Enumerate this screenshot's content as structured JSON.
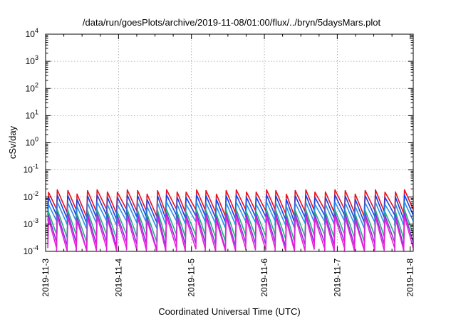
{
  "chart_data": {
    "type": "line",
    "title": "/data/run/goesPlots/archive/2019-11-08/01:00/flux/../bryn/5daysMars.plot",
    "xlabel": "Coordinated Universal Time (UTC)",
    "ylabel": "cSv/day",
    "yscale": "log",
    "ylim": [
      0.0001,
      10000
    ],
    "xlim": [
      "2019-11-03",
      "2019-11-08 01:00"
    ],
    "grid": true,
    "legend": "none",
    "y_ticks": [
      {
        "value": 0.0001,
        "base": "10",
        "exp": "-4"
      },
      {
        "value": 0.001,
        "base": "10",
        "exp": "-3"
      },
      {
        "value": 0.01,
        "base": "10",
        "exp": "-2"
      },
      {
        "value": 0.1,
        "base": "10",
        "exp": "-1"
      },
      {
        "value": 1,
        "base": "10",
        "exp": "0"
      },
      {
        "value": 10,
        "base": "10",
        "exp": "1"
      },
      {
        "value": 100,
        "base": "10",
        "exp": "2"
      },
      {
        "value": 1000,
        "base": "10",
        "exp": "3"
      },
      {
        "value": 10000,
        "base": "10",
        "exp": "4"
      }
    ],
    "x_ticks": [
      "2019-11-3",
      "2019-11-4",
      "2019-11-5",
      "2019-11-6",
      "2019-11-7",
      "2019-11-8"
    ],
    "series": [
      {
        "color": "#e8101c",
        "peak": 0.017,
        "trough": 0.003
      },
      {
        "color": "#1b3fe0",
        "peak": 0.011,
        "trough": 0.0018
      },
      {
        "color": "#2a8ee8",
        "peak": 0.006,
        "trough": 0.0011
      },
      {
        "color": "#22b07a",
        "peak": 0.0032,
        "trough": 0.00035
      },
      {
        "color": "#8a2be2",
        "peak": 0.0024,
        "trough": 0.00018
      },
      {
        "color": "#e620d8",
        "peak": 0.0018,
        "trough": 0.00011
      }
    ]
  }
}
